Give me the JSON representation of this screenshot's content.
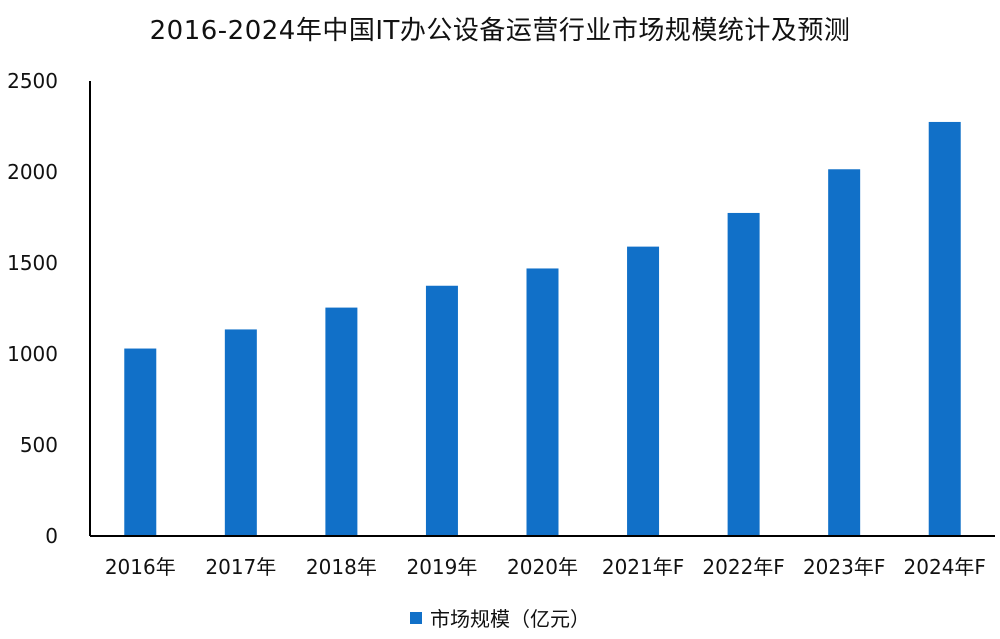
{
  "colors": {
    "bar": "#1170c8",
    "axis": "#000000"
  },
  "chart_data": {
    "type": "bar",
    "title": "2016-2024年中国IT办公设备运营行业市场规模统计及预测",
    "xlabel": "",
    "ylabel": "",
    "categories": [
      "2016年",
      "2017年",
      "2018年",
      "2019年",
      "2020年",
      "2021年F",
      "2022年F",
      "2023年F",
      "2024年F"
    ],
    "series": [
      {
        "name": "市场规模（亿元）",
        "values": [
          1030,
          1135,
          1255,
          1375,
          1470,
          1590,
          1775,
          2015,
          2275
        ]
      }
    ],
    "ylim": [
      0,
      2500
    ],
    "yticks": [
      0,
      500,
      1000,
      1500,
      2000,
      2500
    ],
    "grid": false,
    "legend": "bottom"
  }
}
